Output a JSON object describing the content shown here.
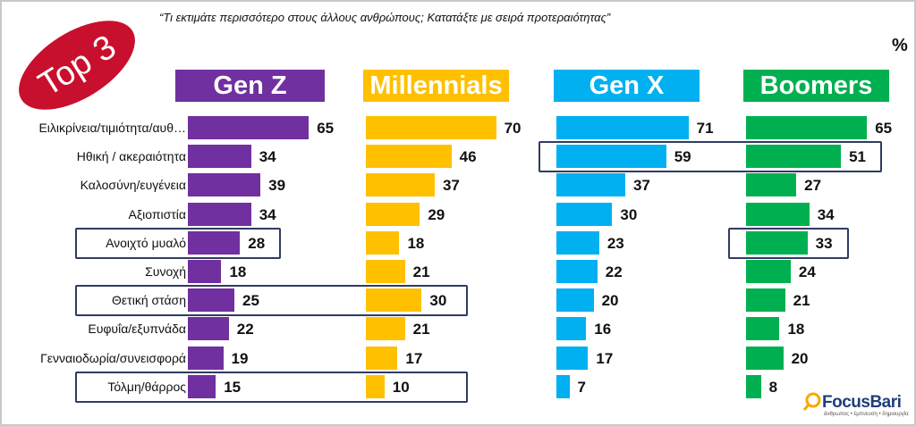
{
  "subtitle": "“Τι εκτιμάτε περισσότερο στους άλλους ανθρώπους; Κατατάξτε με σειρά προτεραιότητας”",
  "unit": "%",
  "badge": {
    "text": "Top 3",
    "color": "#c8102e"
  },
  "logo": {
    "name": "FocusBari",
    "tagline": "άνθρωπος • έμπνευση • δημιουργία"
  },
  "chart_data": {
    "type": "bar",
    "orientation": "horizontal",
    "categories": [
      "Ειλικρίνεια/τιμιότητα/αυθεντικότητα",
      "Ηθική / ακεραιότητα",
      "Καλοσύνη/ευγένεια",
      "Αξιοπιστία",
      "Ανοιχτό μυαλό",
      "Συνοχή",
      "Θετική στάση",
      "Ευφυΐα/εξυπνάδα",
      "Γενναιοδωρία/συνεισφορά",
      "Τόλμη/θάρρος"
    ],
    "series": [
      {
        "name": "Gen Z",
        "color": "#7030a0",
        "values": [
          65,
          34,
          39,
          34,
          28,
          18,
          25,
          22,
          19,
          15
        ]
      },
      {
        "name": "Millennials",
        "color": "#ffc000",
        "values": [
          70,
          46,
          37,
          29,
          18,
          21,
          30,
          21,
          17,
          10
        ]
      },
      {
        "name": "Gen X",
        "color": "#00b0f0",
        "values": [
          71,
          59,
          37,
          30,
          23,
          22,
          20,
          16,
          17,
          7
        ]
      },
      {
        "name": "Boomers",
        "color": "#00b050",
        "values": [
          65,
          51,
          27,
          34,
          33,
          24,
          21,
          18,
          20,
          8
        ]
      }
    ],
    "xlim": [
      0,
      100
    ],
    "grid": false,
    "highlights": [
      {
        "series": [
          "Gen X",
          "Boomers"
        ],
        "category": "Ηθική / ακεραιότητα"
      },
      {
        "series": [
          "Gen Z"
        ],
        "category": "Ανοιχτό μυαλό"
      },
      {
        "series": [
          "Boomers"
        ],
        "category": "Ανοιχτό μυαλό"
      },
      {
        "series": [
          "Gen Z",
          "Millennials"
        ],
        "category": "Θετική στάση"
      },
      {
        "series": [
          "Gen Z",
          "Millennials"
        ],
        "category": "Τόλμη/θάρρος"
      }
    ]
  }
}
